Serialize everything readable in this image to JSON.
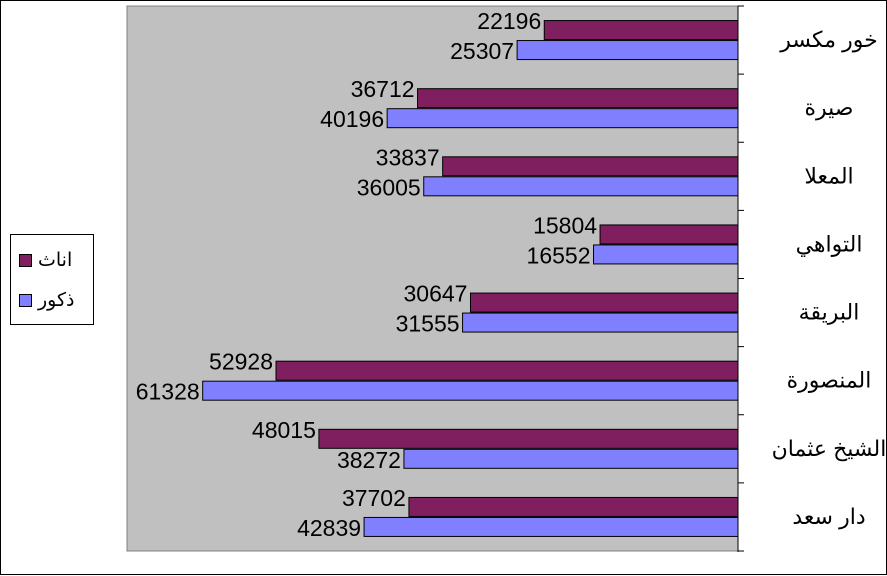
{
  "chart_data": {
    "type": "bar",
    "orientation": "horizontal",
    "categories": [
      "خور مكسر",
      "صيرة",
      "المعلا",
      "التواهي",
      "البريقة",
      "المنصورة",
      "الشيخ عثمان",
      "دار سعد"
    ],
    "series": [
      {
        "name": "اناث",
        "color": "#7f1f5f",
        "values": [
          22196,
          36712,
          33837,
          15804,
          30647,
          52928,
          48015,
          37702
        ]
      },
      {
        "name": "ذكور",
        "color": "#8080ff",
        "values": [
          25307,
          40196,
          36005,
          16552,
          31555,
          61328,
          38272,
          42839
        ]
      }
    ],
    "title": "",
    "xlabel": "",
    "ylabel": "",
    "xlim": [
      0,
      70000
    ],
    "x_axis_reversed": true,
    "category_axis_side": "right",
    "plot_background": "#c0c0c0",
    "grid": false,
    "legend_position": "left",
    "data_labels": true
  }
}
